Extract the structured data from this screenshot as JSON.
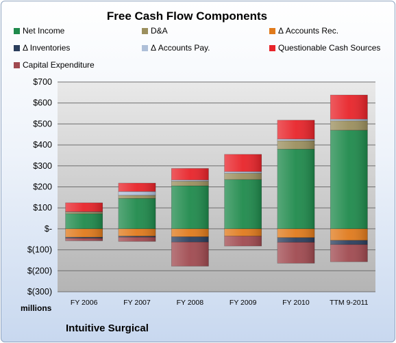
{
  "colors": {
    "net_income": "#1f8a4c",
    "da": "#9b8f5e",
    "accounts_rec": "#e07a1c",
    "inventories": "#2b3e5c",
    "accounts_pay": "#aebfd8",
    "questionable": "#e8242a",
    "capex": "#a04a50"
  },
  "chart_data": {
    "type": "bar",
    "stacked": true,
    "title": "Free Cash Flow Components",
    "categories": [
      "FY 2006",
      "FY 2007",
      "FY 2008",
      "FY 2009",
      "FY 2010",
      "TTM 9-2011"
    ],
    "series": [
      {
        "name": "Net Income",
        "key": "net_income",
        "values": [
          72,
          145,
          205,
          235,
          380,
          470
        ]
      },
      {
        "name": "D&A",
        "key": "da",
        "values": [
          8,
          15,
          22,
          30,
          40,
          45
        ]
      },
      {
        "name": "Δ Accounts Rec.",
        "key": "accounts_rec",
        "values": [
          -40,
          -35,
          -38,
          -35,
          -42,
          -55
        ]
      },
      {
        "name": "Δ Inventories",
        "key": "inventories",
        "values": [
          -5,
          -5,
          -25,
          0,
          -22,
          -20
        ]
      },
      {
        "name": "Δ Accounts Pay.",
        "key": "accounts_pay",
        "values": [
          2,
          18,
          6,
          8,
          8,
          8
        ]
      },
      {
        "name": "Questionable Cash Sources",
        "key": "questionable",
        "values": [
          42,
          40,
          55,
          82,
          90,
          115
        ]
      },
      {
        "name": "Capital Expenditure",
        "key": "capex",
        "values": [
          -12,
          -20,
          -115,
          -47,
          -100,
          -82
        ]
      }
    ],
    "ylim": [
      -300,
      700
    ],
    "yticks": [
      700,
      600,
      500,
      400,
      300,
      200,
      100,
      0,
      -100,
      -200,
      -300
    ],
    "ytick_labels": [
      "$700",
      "$600",
      "$500",
      "$400",
      "$300",
      "$200",
      "$100",
      "$-",
      "$(100)",
      "$(200)",
      "$(300)"
    ],
    "ylabel": "millions",
    "grid": true,
    "legend": "top"
  },
  "company": "Intuitive Surgical"
}
